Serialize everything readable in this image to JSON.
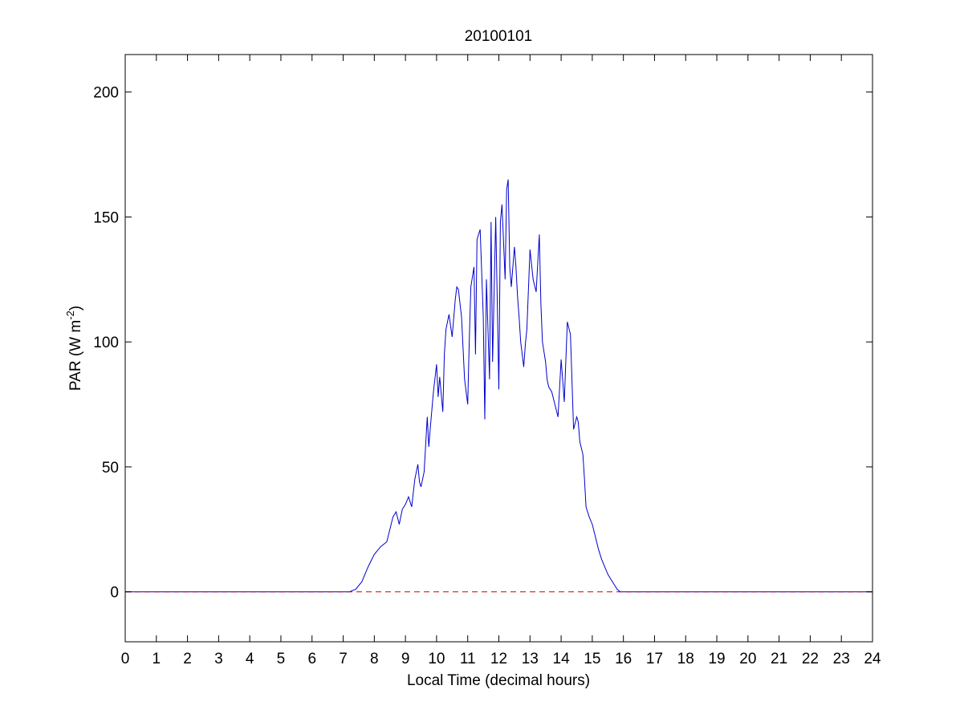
{
  "chart_data": {
    "type": "line",
    "title": "20100101",
    "xlabel": "Local Time (decimal hours)",
    "ylabel": "PAR (W m-2)",
    "ylabel_parts": {
      "main": "PAR (W m",
      "sup": "-2",
      "close": ")"
    },
    "xlim": [
      0,
      24
    ],
    "ylim": [
      -20,
      215
    ],
    "xticks": [
      0,
      1,
      2,
      3,
      4,
      5,
      6,
      7,
      8,
      9,
      10,
      11,
      12,
      13,
      14,
      15,
      16,
      17,
      18,
      19,
      20,
      21,
      22,
      23,
      24
    ],
    "xtick_labels": [
      "0",
      "1",
      "2",
      "3",
      "4",
      "5",
      "6",
      "7",
      "8",
      "9",
      "10",
      "11",
      "12",
      "13",
      "14",
      "15",
      "16",
      "17",
      "18",
      "19",
      "20",
      "21",
      "22",
      "23",
      "24"
    ],
    "yticks": [
      0,
      50,
      100,
      150,
      200
    ],
    "ytick_labels": [
      "0",
      "50",
      "100",
      "150",
      "200"
    ],
    "grid": false,
    "series": [
      {
        "color": "#0000cc",
        "style": "solid",
        "x": [
          0,
          7.2,
          7.4,
          7.6,
          7.8,
          8.0,
          8.2,
          8.4,
          8.6,
          8.7,
          8.8,
          8.9,
          9.0,
          9.1,
          9.2,
          9.3,
          9.4,
          9.45,
          9.5,
          9.6,
          9.7,
          9.75,
          9.8,
          9.9,
          10.0,
          10.05,
          10.1,
          10.2,
          10.25,
          10.3,
          10.4,
          10.5,
          10.6,
          10.65,
          10.7,
          10.8,
          10.9,
          11.0,
          11.05,
          11.1,
          11.2,
          11.25,
          11.3,
          11.4,
          11.5,
          11.55,
          11.6,
          11.7,
          11.75,
          11.8,
          11.9,
          12.0,
          12.05,
          12.1,
          12.2,
          12.25,
          12.3,
          12.35,
          12.4,
          12.5,
          12.55,
          12.6,
          12.65,
          12.7,
          12.8,
          12.85,
          12.9,
          13.0,
          13.1,
          13.2,
          13.3,
          13.35,
          13.4,
          13.5,
          13.55,
          13.6,
          13.7,
          13.8,
          13.9,
          14.0,
          14.1,
          14.2,
          14.3,
          14.4,
          14.5,
          14.55,
          14.6,
          14.7,
          14.75,
          14.8,
          14.9,
          15.0,
          15.1,
          15.2,
          15.3,
          15.4,
          15.5,
          15.6,
          15.7,
          15.8,
          15.9,
          16.0,
          16.2,
          16.4,
          16.6,
          16.8,
          17.0,
          17.2,
          24
        ],
        "y": [
          0,
          0,
          1,
          4,
          10,
          15,
          18,
          20,
          30,
          32,
          27,
          33,
          35,
          38,
          34,
          45,
          51,
          44,
          42,
          48,
          70,
          58,
          66,
          80,
          91,
          78,
          86,
          72,
          95,
          105,
          111,
          102,
          117,
          122,
          121,
          110,
          85,
          75,
          100,
          122,
          130,
          95,
          141,
          145,
          110,
          69,
          125,
          85,
          148,
          92,
          150,
          81,
          148,
          155,
          125,
          161,
          165,
          130,
          122,
          138,
          130,
          118,
          110,
          100,
          90,
          99,
          105,
          137,
          125,
          120,
          143,
          115,
          100,
          92,
          85,
          82,
          80,
          75,
          70,
          93,
          76,
          108,
          103,
          65,
          70,
          68,
          60,
          55,
          45,
          34,
          30,
          27,
          22,
          17,
          13,
          10,
          7,
          5,
          3,
          1,
          0,
          0,
          0,
          0,
          0,
          0,
          0,
          0,
          0
        ]
      },
      {
        "color": "#cc0000",
        "style": "dashed",
        "x": [
          0,
          24
        ],
        "y": [
          0,
          0
        ]
      }
    ]
  }
}
